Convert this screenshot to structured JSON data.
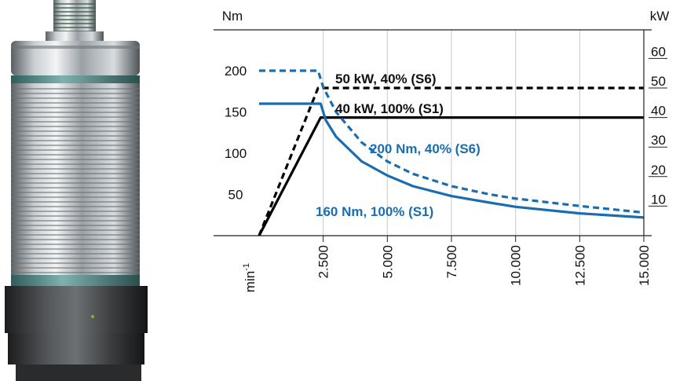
{
  "chart_data": {
    "type": "line",
    "left_axis_unit": "Nm",
    "right_axis_unit": "kW",
    "x_unit": "min",
    "x_unit_exp": "-1",
    "x_ticks": [
      "2.500",
      "5.000",
      "7.500",
      "10.000",
      "12.500",
      "15.000"
    ],
    "x_tick_values": [
      2500,
      5000,
      7500,
      10000,
      12500,
      15000
    ],
    "xlim": [
      0,
      15000
    ],
    "y_left_ticks": [
      "50",
      "100",
      "150",
      "200"
    ],
    "y_left_tick_values": [
      50,
      100,
      150,
      200
    ],
    "y_left_lim": [
      0,
      200
    ],
    "y_right_ticks": [
      "10",
      "20",
      "30",
      "40",
      "50",
      "60"
    ],
    "y_right_tick_values": [
      10,
      20,
      30,
      40,
      50,
      60
    ],
    "grid": "vertical",
    "series": [
      {
        "name": "50 kW, 40% (S6)",
        "axis": "right",
        "style": "dashed",
        "color": "#000000",
        "x": [
          0,
          2300,
          15000
        ],
        "y": [
          0,
          50,
          50
        ]
      },
      {
        "name": "40 kW, 100% (S1)",
        "axis": "right",
        "style": "solid",
        "color": "#000000",
        "x": [
          0,
          2400,
          15000
        ],
        "y": [
          0,
          40,
          40
        ]
      },
      {
        "name": "200 Nm, 40% (S6)",
        "axis": "left",
        "style": "dashed",
        "color": "#1a6db0",
        "x": [
          0,
          2300,
          2500,
          3000,
          4000,
          5000,
          6000,
          7500,
          9000,
          10000,
          12500,
          15000
        ],
        "y": [
          200,
          200,
          180,
          150,
          113,
          90,
          75,
          60,
          50,
          45,
          36,
          28
        ]
      },
      {
        "name": "160 Nm, 100% (S1)",
        "axis": "left",
        "style": "solid",
        "color": "#1a6db0",
        "x": [
          0,
          2400,
          2600,
          3000,
          4000,
          5000,
          6000,
          7500,
          9000,
          10000,
          12500,
          15000
        ],
        "y": [
          160,
          160,
          140,
          120,
          90,
          73,
          60,
          48,
          40,
          35,
          27,
          22
        ]
      }
    ]
  }
}
